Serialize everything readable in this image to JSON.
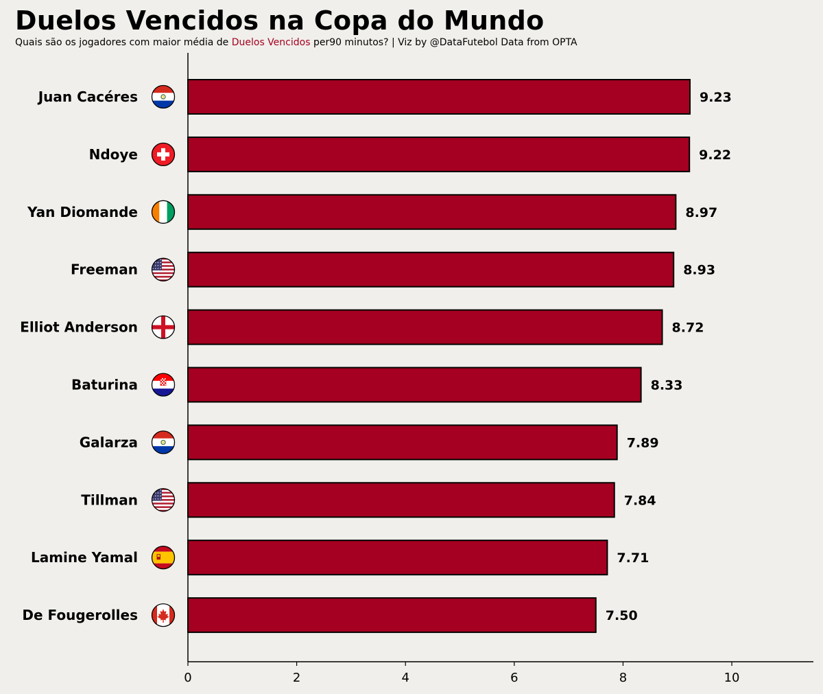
{
  "header": {
    "title": "Duelos Vencidos na Copa do Mundo",
    "subtitle_pre": "Quais são os jogadores com maior média de ",
    "subtitle_highlight": "Duelos Vencidos",
    "subtitle_post": " per90 minutos? | Viz by @DataFutebol Data from OPTA"
  },
  "colors": {
    "bar": "#a50021",
    "background": "#f0efeb",
    "highlight": "#a50021"
  },
  "chart_data": {
    "type": "bar",
    "orientation": "horizontal",
    "title": "Duelos Vencidos na Copa do Mundo",
    "xlabel": "",
    "ylabel": "",
    "xlim": [
      0,
      11.5
    ],
    "xticks": [
      0,
      2,
      4,
      6,
      8,
      10
    ],
    "grid": false,
    "categories": [
      "Juan Caceres",
      "Ndoye",
      "Yan Diomande",
      "Freeman",
      "Elliot Anderson",
      "Baturina",
      "Galarza",
      "Tillman",
      "Lamine Yamal",
      "De Fougerolles"
    ],
    "labels": [
      "Juan Cacéres",
      "Ndoye",
      "Yan Diomande",
      "Freeman",
      "Elliot Anderson",
      "Baturina",
      "Galarza",
      "Tillman",
      "Lamine Yamal",
      "De Fougerolles"
    ],
    "values": [
      9.23,
      9.22,
      8.97,
      8.93,
      8.72,
      8.33,
      7.89,
      7.84,
      7.71,
      7.5
    ],
    "value_labels": [
      "9.23",
      "9.22",
      "8.97",
      "8.93",
      "8.72",
      "8.33",
      "7.89",
      "7.84",
      "7.71",
      "7.50"
    ],
    "flags": [
      "paraguay-flag-icon",
      "switzerland-flag-icon",
      "ivory-coast-flag-icon",
      "usa-flag-icon",
      "england-flag-icon",
      "croatia-flag-icon",
      "paraguay-flag-icon",
      "usa-flag-icon",
      "spain-flag-icon",
      "canada-flag-icon"
    ]
  }
}
